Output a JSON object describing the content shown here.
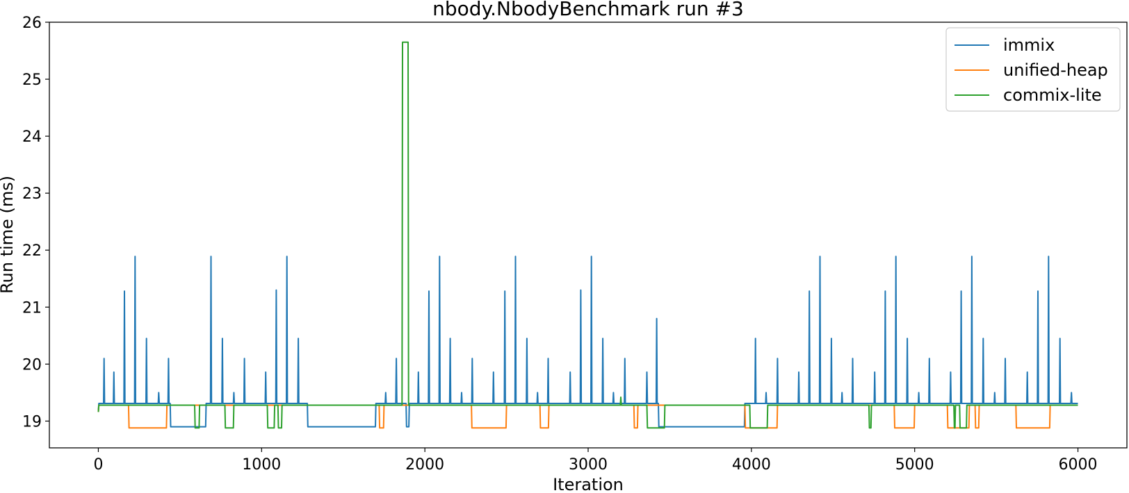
{
  "chart_data": {
    "type": "line",
    "title": "nbody.NbodyBenchmark run #3",
    "xlabel": "Iteration",
    "ylabel": "Run time (ms)",
    "xlim": [
      -300,
      6300
    ],
    "ylim": [
      18.53,
      26.0
    ],
    "x_ticks": [
      0,
      1000,
      2000,
      3000,
      4000,
      5000,
      6000
    ],
    "x_tick_labels": [
      "0",
      "1000",
      "2000",
      "3000",
      "4000",
      "5000",
      "6000"
    ],
    "y_ticks": [
      19,
      20,
      21,
      22,
      23,
      24,
      25,
      26
    ],
    "y_tick_labels": [
      "19",
      "20",
      "21",
      "22",
      "23",
      "24",
      "25",
      "26"
    ],
    "grid": false,
    "legend_position": "top-right",
    "series": [
      {
        "name": "immix",
        "color": "#1f77b4",
        "baseline": 19.31,
        "low_segments": [
          [
            440,
            660,
            18.9
          ],
          [
            1280,
            1700,
            18.9
          ],
          [
            1885,
            1905,
            18.9
          ],
          [
            3430,
            3960,
            18.9
          ]
        ],
        "spikes": [
          [
            35,
            20.1
          ],
          [
            95,
            19.86
          ],
          [
            160,
            21.28
          ],
          [
            225,
            21.89
          ],
          [
            295,
            20.45
          ],
          [
            370,
            19.5
          ],
          [
            430,
            20.1
          ],
          [
            560,
            19.5
          ],
          [
            625,
            20.8
          ],
          [
            690,
            21.89
          ],
          [
            760,
            20.45
          ],
          [
            830,
            19.5
          ],
          [
            895,
            20.1
          ],
          [
            1025,
            19.86
          ],
          [
            1090,
            21.3
          ],
          [
            1155,
            21.89
          ],
          [
            1225,
            20.45
          ],
          [
            1360,
            19.8
          ],
          [
            1490,
            19.5
          ],
          [
            1555,
            20.8
          ],
          [
            1620,
            21.5
          ],
          [
            1690,
            20.05
          ],
          [
            1760,
            19.5
          ],
          [
            1825,
            20.1
          ],
          [
            1960,
            19.86
          ],
          [
            2025,
            21.28
          ],
          [
            2090,
            21.89
          ],
          [
            2155,
            20.45
          ],
          [
            2225,
            19.5
          ],
          [
            2290,
            20.1
          ],
          [
            2420,
            19.86
          ],
          [
            2490,
            21.28
          ],
          [
            2555,
            21.89
          ],
          [
            2625,
            20.45
          ],
          [
            2690,
            19.5
          ],
          [
            2755,
            20.1
          ],
          [
            2890,
            19.86
          ],
          [
            2955,
            21.3
          ],
          [
            3020,
            21.89
          ],
          [
            3090,
            20.45
          ],
          [
            3155,
            19.5
          ],
          [
            3225,
            20.1
          ],
          [
            3360,
            19.86
          ],
          [
            3420,
            20.8
          ],
          [
            3490,
            21.5
          ],
          [
            3555,
            20.05
          ],
          [
            3625,
            19.02
          ],
          [
            3690,
            19.8
          ],
          [
            3825,
            19.5
          ],
          [
            3890,
            20.8
          ],
          [
            3955,
            21.5
          ],
          [
            4025,
            20.45
          ],
          [
            4090,
            19.5
          ],
          [
            4160,
            20.1
          ],
          [
            4290,
            19.86
          ],
          [
            4355,
            21.28
          ],
          [
            4420,
            21.89
          ],
          [
            4490,
            20.45
          ],
          [
            4555,
            19.5
          ],
          [
            4620,
            20.1
          ],
          [
            4755,
            19.86
          ],
          [
            4820,
            21.28
          ],
          [
            4885,
            21.89
          ],
          [
            4955,
            20.45
          ],
          [
            5025,
            19.5
          ],
          [
            5090,
            20.1
          ],
          [
            5220,
            19.86
          ],
          [
            5285,
            21.28
          ],
          [
            5350,
            21.89
          ],
          [
            5420,
            20.45
          ],
          [
            5490,
            19.5
          ],
          [
            5555,
            20.1
          ],
          [
            5690,
            19.86
          ],
          [
            5755,
            21.28
          ],
          [
            5820,
            21.89
          ],
          [
            5890,
            20.45
          ],
          [
            5960,
            19.5
          ]
        ]
      },
      {
        "name": "unified-heap",
        "color": "#ff7f0e",
        "baseline": 19.28,
        "low_segments": [
          [
            185,
            420,
            18.88
          ],
          [
            1720,
            1750,
            18.88
          ],
          [
            2285,
            2500,
            18.88
          ],
          [
            2705,
            2760,
            18.88
          ],
          [
            3280,
            3305,
            18.88
          ],
          [
            3960,
            4160,
            18.88
          ],
          [
            4875,
            5000,
            18.88
          ],
          [
            5200,
            5335,
            18.88
          ],
          [
            5370,
            5395,
            18.88
          ],
          [
            5620,
            5830,
            18.88
          ]
        ],
        "spikes": []
      },
      {
        "name": "commix-lite",
        "color": "#2ca02c",
        "baseline": 19.28,
        "low_segments": [
          [
            590,
            620,
            18.88
          ],
          [
            775,
            830,
            18.88
          ],
          [
            1035,
            1080,
            18.88
          ],
          [
            1100,
            1125,
            18.88
          ],
          [
            3360,
            3470,
            18.88
          ],
          [
            3990,
            4100,
            18.88
          ],
          [
            4720,
            4735,
            18.88
          ],
          [
            5240,
            5250,
            18.88
          ],
          [
            5275,
            5320,
            18.88
          ]
        ],
        "high_segments": [
          [
            1860,
            1900,
            25.65
          ]
        ],
        "spikes": [
          [
            3200,
            19.42
          ]
        ]
      }
    ]
  }
}
